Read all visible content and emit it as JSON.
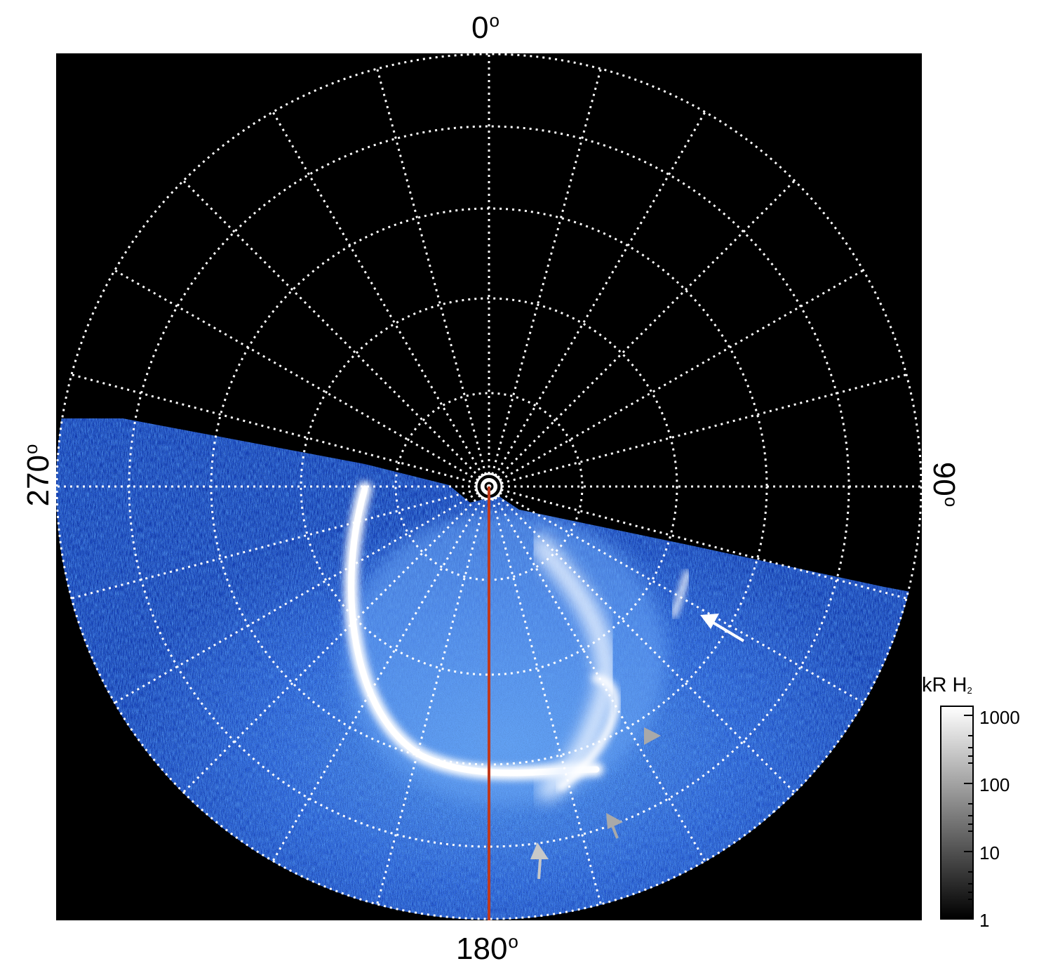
{
  "figure": {
    "angle_labels": {
      "top": "0",
      "right": "90",
      "bottom": "180",
      "left": "270"
    },
    "degree_symbol": "o",
    "colorbar": {
      "title_main": "kR H",
      "title_sub": "2",
      "tick_labels": [
        "1000",
        "100",
        "10",
        "1"
      ],
      "scale": "log",
      "colors": [
        "#000000",
        "#ffffff"
      ]
    },
    "image_colors": {
      "background": "#000000",
      "aurora_dim": "#1a4fd0",
      "aurora_mid": "#4a90f0",
      "aurora_bright": "#ffffff",
      "meridian_line": "#c0391b",
      "grid": "#ffffff"
    },
    "arrows": [
      {
        "color": "white",
        "count": 1
      },
      {
        "color": "gray",
        "count": 3
      }
    ]
  }
}
